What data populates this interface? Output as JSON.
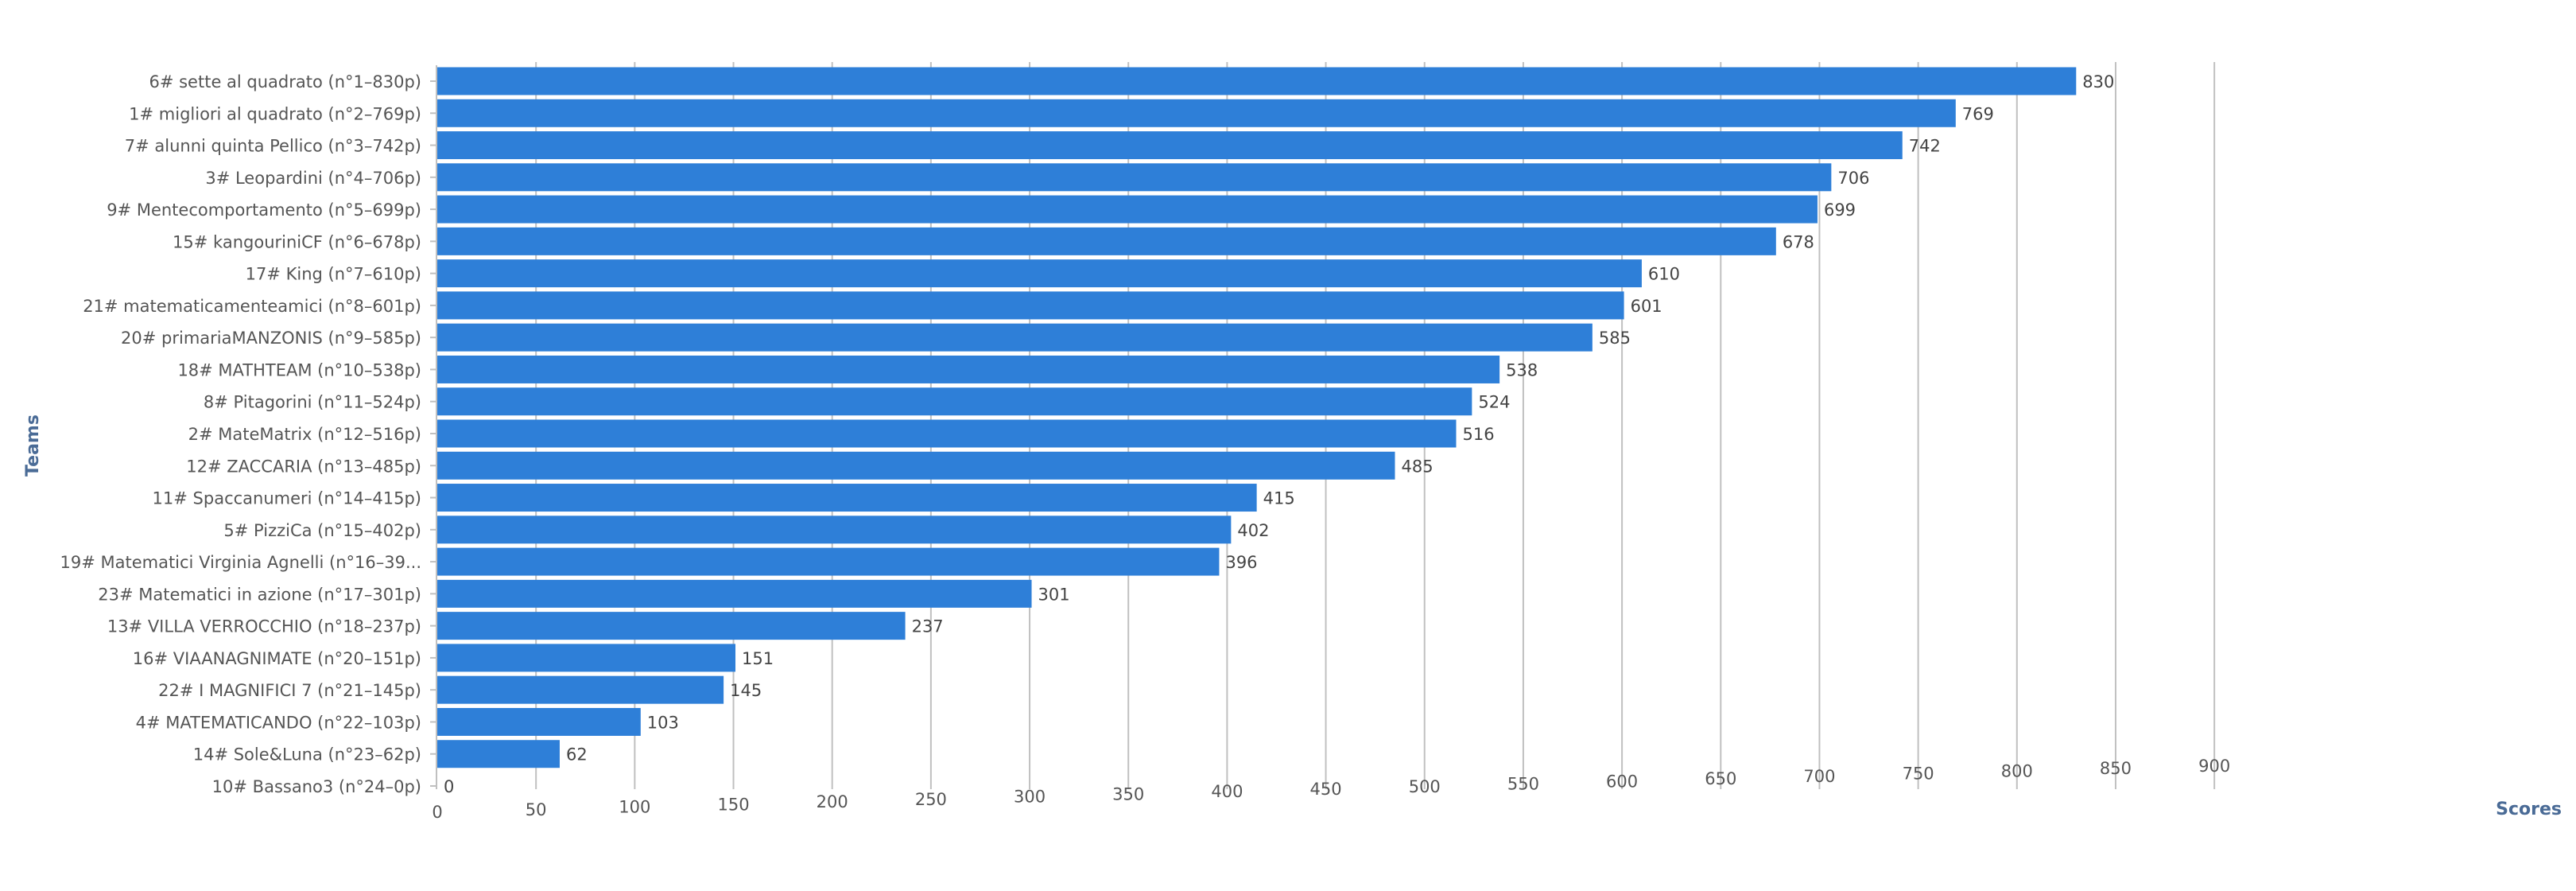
{
  "chart_data": {
    "type": "bar",
    "orientation": "horizontal",
    "title": "",
    "xlabel": "Scores",
    "ylabel": "Teams",
    "xlim": [
      0,
      900
    ],
    "x_ticks": [
      "0",
      "50",
      "100",
      "150",
      "200",
      "250",
      "300",
      "350",
      "400",
      "450",
      "500",
      "550",
      "600",
      "650",
      "700",
      "750",
      "800",
      "850",
      "900"
    ],
    "grid": true,
    "legend": "none",
    "bar_color": "#2e7fd8",
    "categories": [
      "6# sette al quadrato (n°1–830p)",
      "1# migliori al quadrato (n°2–769p)",
      "7# alunni quinta Pellico (n°3–742p)",
      "3# Leopardini (n°4–706p)",
      "9# Mentecomportamento (n°5–699p)",
      "15# kangouriniCF (n°6–678p)",
      "17# King (n°7–610p)",
      "21# matematicamenteamici (n°8–601p)",
      "20# primariaMANZONIS (n°9–585p)",
      "18# MATHTEAM (n°10–538p)",
      "8# Pitagorini (n°11–524p)",
      "2# MateMatrix (n°12–516p)",
      "12# ZACCARIA (n°13–485p)",
      "11# Spaccanumeri (n°14–415p)",
      "5# PizziCa (n°15–402p)",
      "19# Matematici Virginia Agnelli (n°16–39...",
      "23# Matematici in azione (n°17–301p)",
      "13# VILLA VERROCCHIO (n°18–237p)",
      "16# VIAANAGNIMATE (n°20–151p)",
      "22# I MAGNIFICI 7 (n°21–145p)",
      "4# MATEMATICANDO (n°22–103p)",
      "14# Sole&Luna (n°23–62p)",
      "10# Bassano3 (n°24–0p)"
    ],
    "values": [
      830,
      769,
      742,
      706,
      699,
      678,
      610,
      601,
      585,
      538,
      524,
      516,
      485,
      415,
      402,
      396,
      301,
      237,
      151,
      145,
      103,
      62,
      0
    ],
    "value_labels": [
      "830",
      "769",
      "742",
      "706",
      "699",
      "678",
      "610",
      "601",
      "585",
      "538",
      "524",
      "516",
      "485",
      "415",
      "402",
      "396",
      "301",
      "237",
      "151",
      "145",
      "103",
      "62",
      "0"
    ]
  }
}
